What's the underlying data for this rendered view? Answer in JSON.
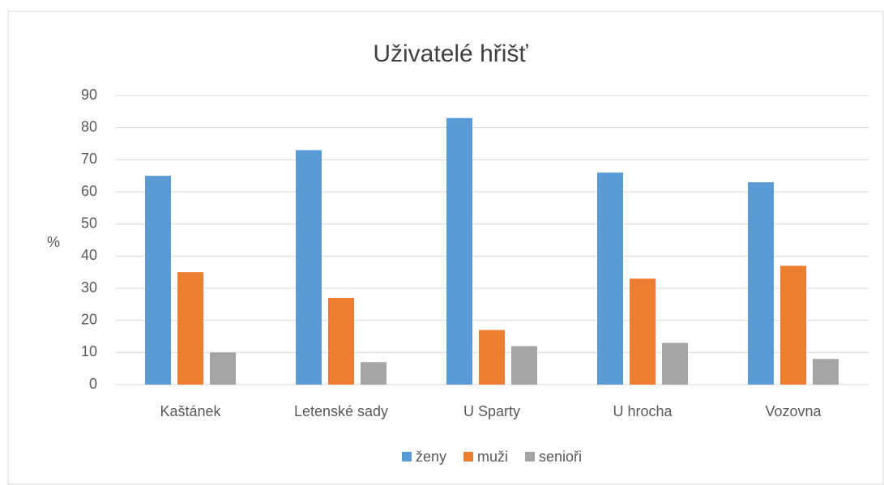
{
  "chart_data": {
    "type": "bar",
    "title": "Uživatelé hřišť",
    "y_label": "%",
    "categories": [
      "Kaštánek",
      "Letenské sady",
      "U Sparty",
      "U hrocha",
      "Vozovna"
    ],
    "series": [
      {
        "name": "ženy",
        "color": "#5b9bd5",
        "values": [
          65,
          73,
          83,
          66,
          63
        ]
      },
      {
        "name": "muži",
        "color": "#ed7d31",
        "values": [
          35,
          27,
          17,
          33,
          37
        ]
      },
      {
        "name": "senioři",
        "color": "#a5a5a5",
        "values": [
          10,
          7,
          12,
          13,
          8
        ]
      }
    ],
    "ylim": [
      0,
      90
    ],
    "yticks": [
      0,
      10,
      20,
      30,
      40,
      50,
      60,
      70,
      80,
      90
    ],
    "grid": true,
    "legend": "bottom"
  }
}
